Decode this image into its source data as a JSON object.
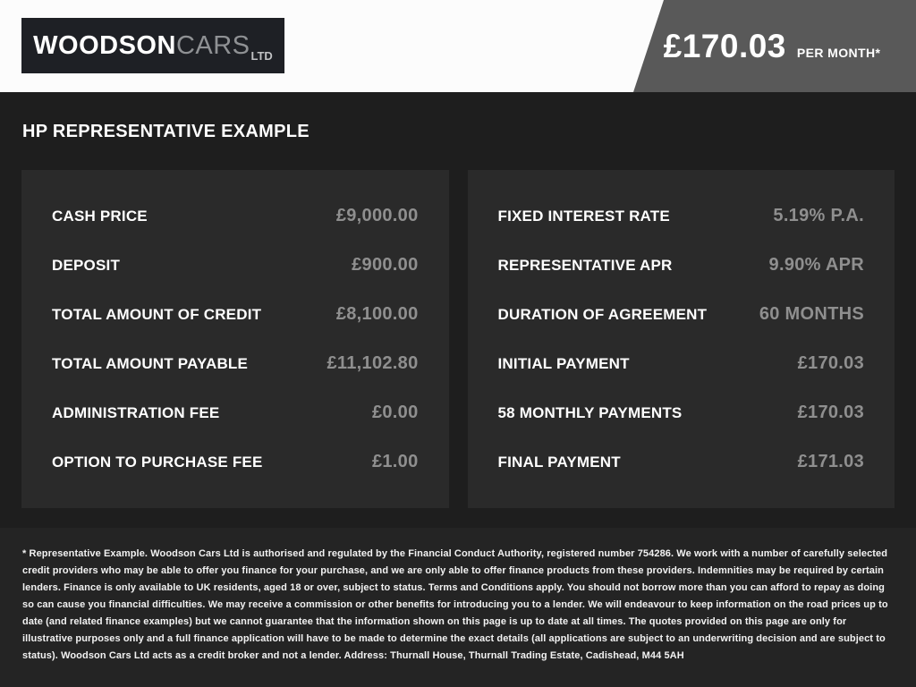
{
  "header": {
    "logo": {
      "woodson": "WOODSON",
      "cars": "CARS",
      "ltd": "LTD"
    },
    "price_banner": {
      "amount": "£170.03",
      "per_month": "PER MONTH*"
    }
  },
  "title": "HP REPRESENTATIVE EXAMPLE",
  "panels": [
    {
      "rows": [
        {
          "label": "CASH PRICE",
          "value": "£9,000.00"
        },
        {
          "label": "DEPOSIT",
          "value": "£900.00"
        },
        {
          "label": "TOTAL AMOUNT OF CREDIT",
          "value": "£8,100.00"
        },
        {
          "label": "TOTAL AMOUNT PAYABLE",
          "value": "£11,102.80"
        },
        {
          "label": "ADMINISTRATION FEE",
          "value": "£0.00"
        },
        {
          "label": "OPTION TO PURCHASE FEE",
          "value": "£1.00"
        }
      ]
    },
    {
      "rows": [
        {
          "label": "FIXED INTEREST RATE",
          "value": "5.19% P.A."
        },
        {
          "label": "REPRESENTATIVE APR",
          "value": "9.90% APR"
        },
        {
          "label": "DURATION OF AGREEMENT",
          "value": "60 MONTHS"
        },
        {
          "label": "INITIAL PAYMENT",
          "value": "£170.03"
        },
        {
          "label": "58 MONTHLY PAYMENTS",
          "value": "£170.03"
        },
        {
          "label": "FINAL PAYMENT",
          "value": "£171.03"
        }
      ]
    }
  ],
  "disclaimer": "* Representative Example. Woodson Cars Ltd is authorised and regulated by the Financial Conduct Authority, registered number 754286. We work with a number of carefully selected credit providers who may be able to offer you finance for your purchase, and we are only able to offer finance products from these providers. Indemnities may be required by certain lenders. Finance is only available to UK residents, aged 18 or over, subject to status. Terms and Conditions apply. You should not borrow more than you can afford to repay as doing so can cause you financial difficulties. We may receive a commission or other benefits for introducing you to a lender. We will endeavour to keep information on the road prices up to date (and related finance examples) but we cannot guarantee that the information shown on this page is up to date at all times. The quotes provided on this page are only for illustrative purposes only and a full finance application will have to be made to determine the exact details (all applications are subject to an underwriting decision and are subject to status). Woodson Cars Ltd acts as a credit broker and not a lender. Address: Thurnall House, Thurnall Trading Estate, Cadishead, M44 5AH",
  "colors": {
    "header_bg": "#fcfcfc",
    "banner_bg": "#595959",
    "body_bg": "#1e1e1e",
    "panel_bg": "#2a2a2a",
    "footer_bg": "#242424",
    "logo_bg": "#1e2025",
    "label_text": "#ffffff",
    "value_text": "#8f8f8f"
  }
}
